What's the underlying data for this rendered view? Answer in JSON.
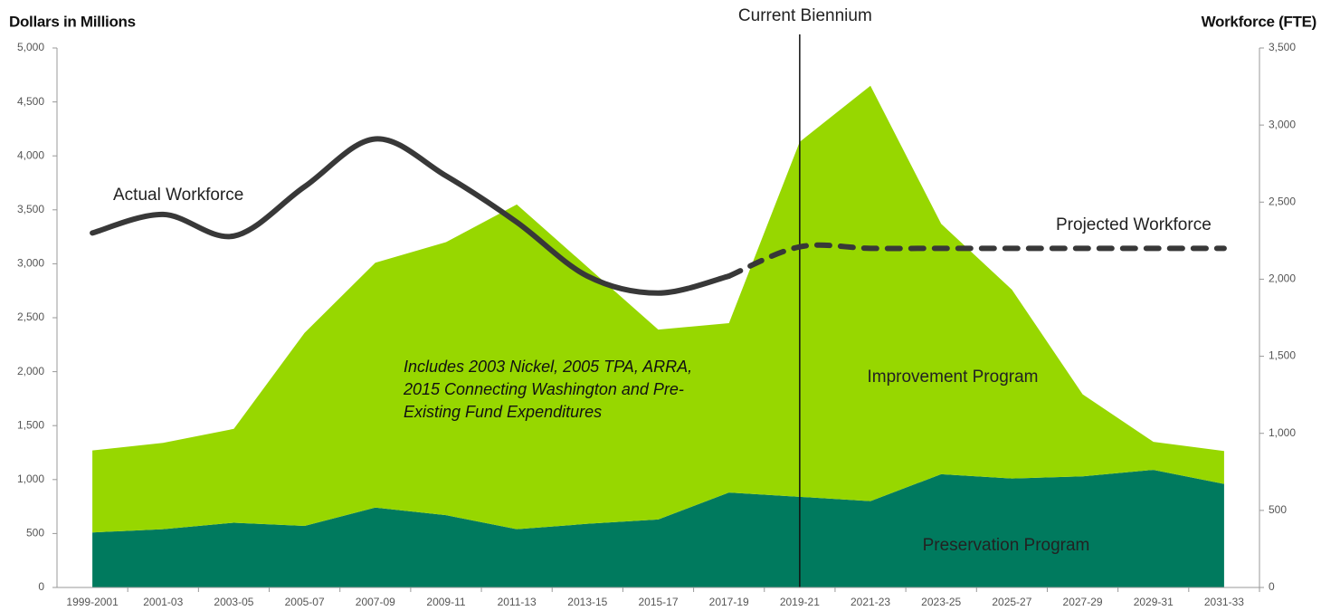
{
  "chart_data": {
    "type": "stacked_area_line",
    "ylabel": "Dollars in Millions",
    "y2label": "Workforce (FTE)",
    "categories": [
      "1999-2001",
      "2001-03",
      "2003-05",
      "2005-07",
      "2007-09",
      "2009-11",
      "2011-13",
      "2013-15",
      "2015-17",
      "2017-19",
      "2019-21",
      "2021-23",
      "2023-25",
      "2025-27",
      "2027-29",
      "2029-31",
      "2031-33"
    ],
    "series": [
      {
        "name": "Preservation Program",
        "color": "#007a5e",
        "label_color": "#ffffff",
        "values": [
          510,
          540,
          600,
          570,
          740,
          670,
          540,
          590,
          630,
          880,
          840,
          800,
          1050,
          1010,
          1030,
          1090,
          960
        ]
      },
      {
        "name": "Improvement Program",
        "color": "#97d700",
        "label_color": "#222222",
        "values": [
          760,
          800,
          870,
          1790,
          2270,
          2530,
          3010,
          2380,
          1760,
          1570,
          3290,
          3850,
          2320,
          1750,
          760,
          260,
          305
        ]
      },
      {
        "name": "Actual Workforce",
        "color": "#383838",
        "axis": "y2",
        "dashed": false,
        "values": [
          2300,
          2420,
          2280,
          2600,
          2910,
          2670,
          2370,
          2020,
          1910,
          2020,
          null,
          null,
          null,
          null,
          null,
          null,
          null
        ]
      },
      {
        "name": "Projected Workforce",
        "color": "#383838",
        "axis": "y2",
        "dashed": true,
        "values": [
          null,
          null,
          null,
          null,
          null,
          null,
          null,
          null,
          null,
          2020,
          2210,
          2200,
          2200,
          2200,
          2200,
          2200,
          2200
        ]
      }
    ],
    "annotation": [
      "Includes 2003 Nickel, 2005 TPA, ARRA,",
      "2015 Connecting Washington and Pre-",
      "Existing Fund Expenditures"
    ],
    "reference_line": {
      "x": "2019-21",
      "label": "Current Biennium"
    },
    "ylim": [
      0,
      5000
    ],
    "yticks": [
      0,
      500,
      {
        "value": 1000,
        "label": "1,000"
      },
      {
        "value": 1500,
        "label": "1,500"
      },
      {
        "value": 2000,
        "label": "2,000"
      },
      {
        "value": 2500,
        "label": "2,500"
      },
      {
        "value": 3000,
        "label": "3,000"
      },
      {
        "value": 3500,
        "label": "3,500"
      },
      {
        "value": 4000,
        "label": "4,000"
      },
      {
        "value": 4500,
        "label": "4,500"
      },
      {
        "value": 5000,
        "label": "5,000"
      }
    ],
    "y2lim": [
      0,
      3500
    ],
    "y2ticks": [
      0,
      500,
      {
        "value": 1000,
        "label": "1,000"
      },
      {
        "value": 1500,
        "label": "1,500"
      },
      {
        "value": 2000,
        "label": "2,000"
      },
      {
        "value": 2500,
        "label": "2,500"
      },
      {
        "value": 3000,
        "label": "3,000"
      },
      {
        "value": 3500,
        "label": "3,500"
      }
    ],
    "grid": false
  }
}
